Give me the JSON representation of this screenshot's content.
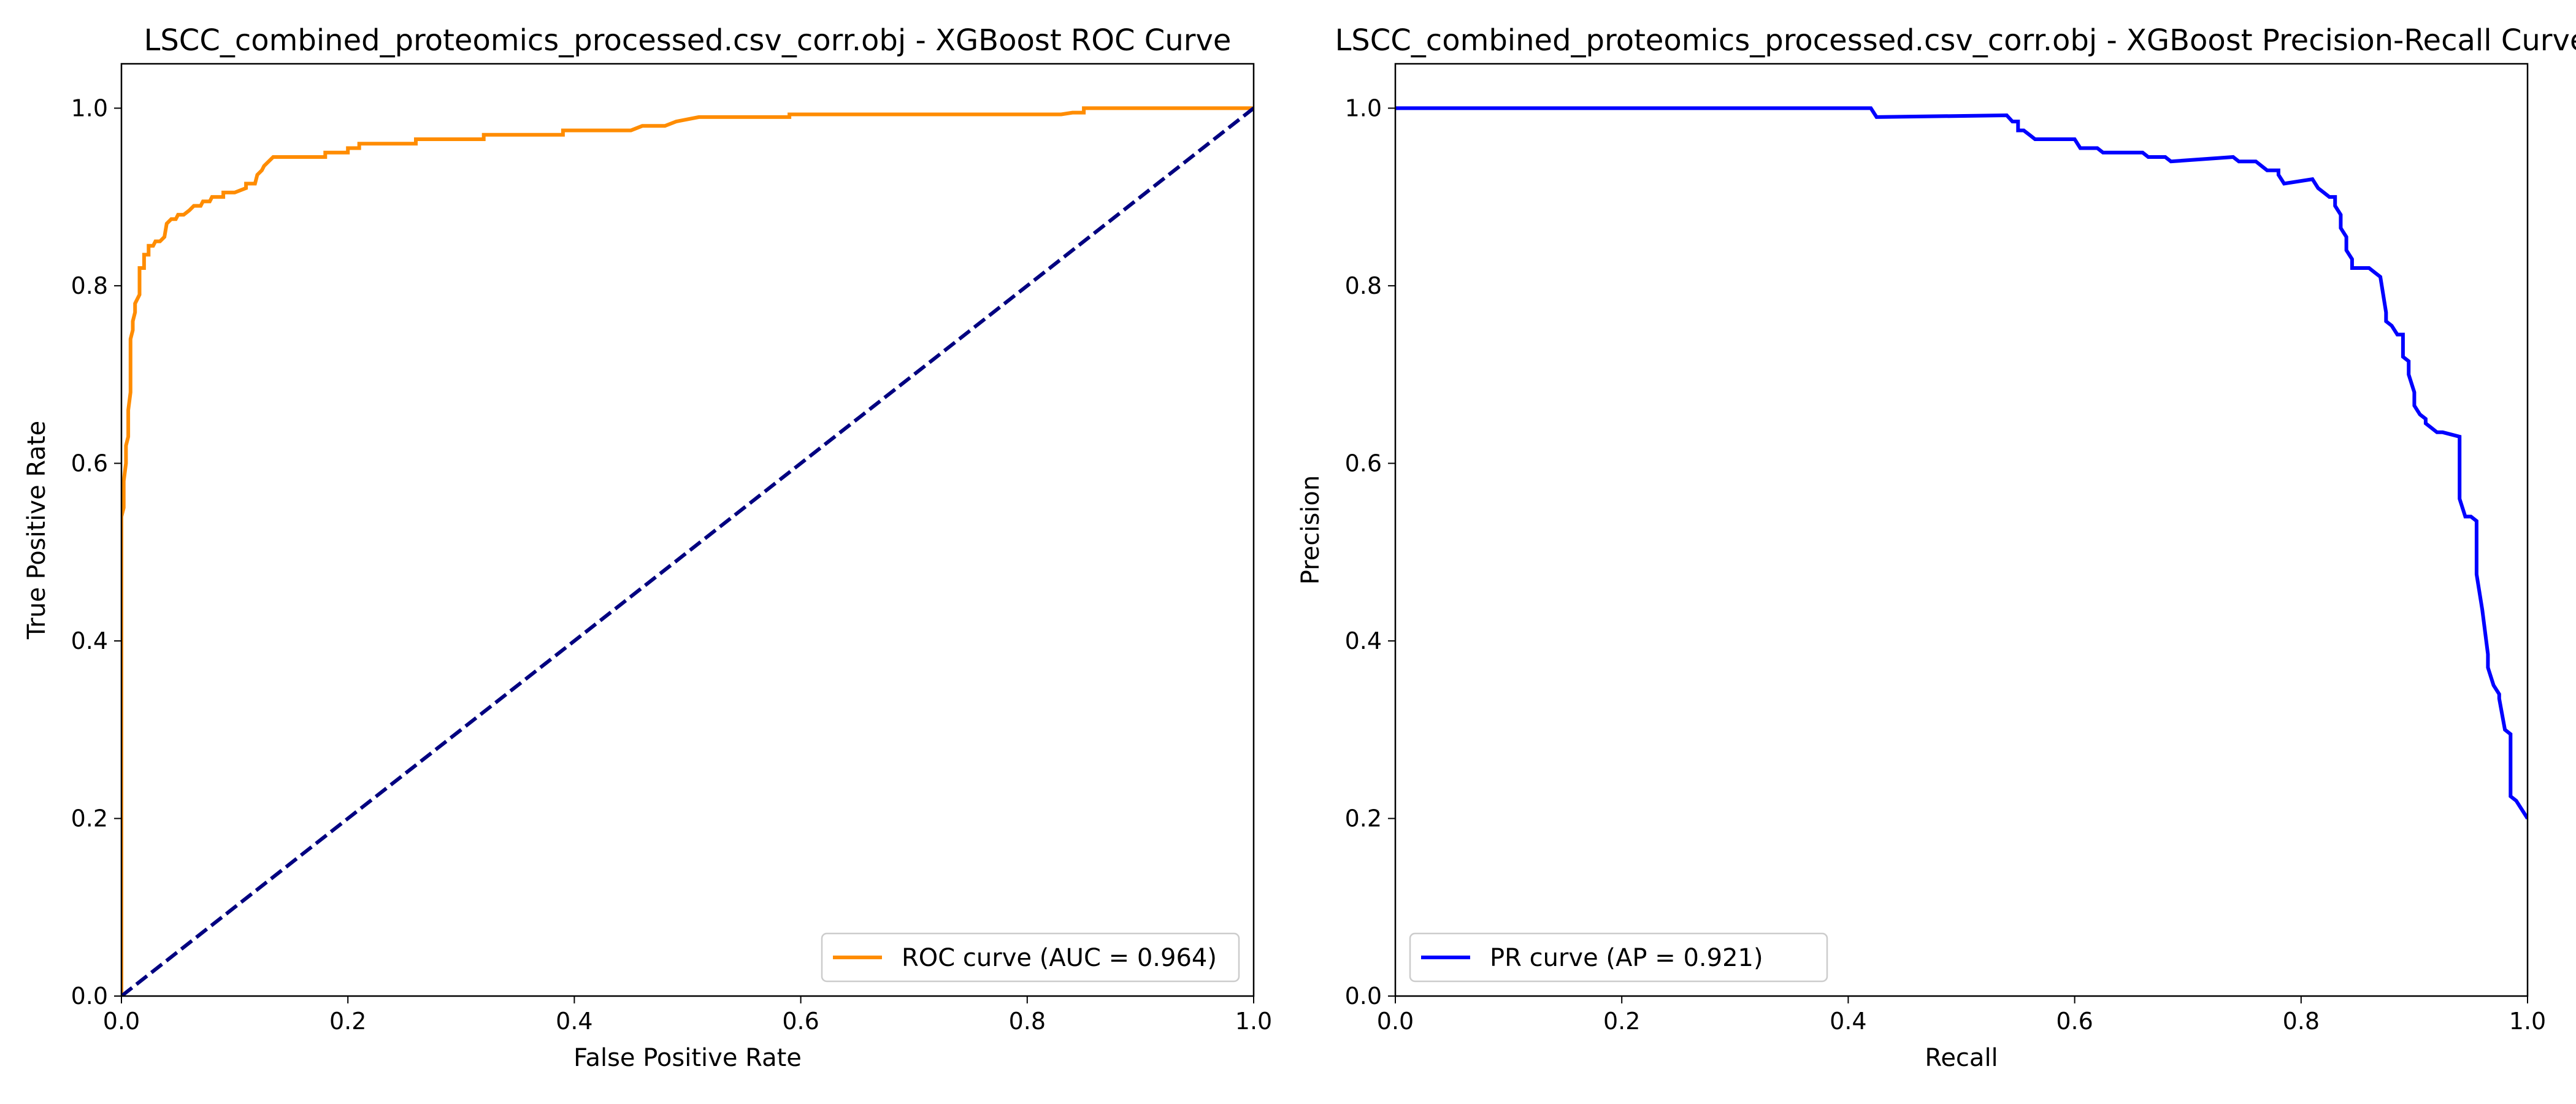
{
  "chart_data": [
    {
      "type": "line",
      "title": "LSCC_combined_proteomics_processed.csv_corr.obj - XGBoost ROC Curve",
      "xlabel": "False Positive Rate",
      "ylabel": "True Positive Rate",
      "xlim": [
        0.0,
        1.0
      ],
      "ylim": [
        0.0,
        1.05
      ],
      "xticks": [
        "0.0",
        "0.2",
        "0.4",
        "0.6",
        "0.8",
        "1.0"
      ],
      "yticks": [
        "0.0",
        "0.2",
        "0.4",
        "0.6",
        "0.8",
        "1.0"
      ],
      "grid": false,
      "legend_position": "lower right",
      "series": [
        {
          "name": "ROC curve (AUC = 0.964)",
          "color": "#ff8c00",
          "dash": "solid",
          "x": [
            0.0,
            0.0,
            0.002,
            0.002,
            0.004,
            0.004,
            0.006,
            0.006,
            0.008,
            0.008,
            0.01,
            0.01,
            0.012,
            0.012,
            0.016,
            0.016,
            0.02,
            0.02,
            0.024,
            0.024,
            0.028,
            0.03,
            0.034,
            0.038,
            0.04,
            0.044,
            0.048,
            0.05,
            0.055,
            0.06,
            0.064,
            0.07,
            0.072,
            0.078,
            0.08,
            0.09,
            0.09,
            0.1,
            0.11,
            0.11,
            0.118,
            0.12,
            0.124,
            0.126,
            0.13,
            0.134,
            0.136,
            0.16,
            0.18,
            0.18,
            0.2,
            0.2,
            0.21,
            0.21,
            0.26,
            0.26,
            0.32,
            0.32,
            0.39,
            0.39,
            0.45,
            0.46,
            0.48,
            0.49,
            0.51,
            0.59,
            0.59,
            0.74,
            0.83,
            0.84,
            0.85,
            0.85,
            1.0
          ],
          "y": [
            0.0,
            0.54,
            0.55,
            0.58,
            0.6,
            0.62,
            0.63,
            0.66,
            0.68,
            0.74,
            0.75,
            0.76,
            0.77,
            0.78,
            0.79,
            0.82,
            0.82,
            0.835,
            0.835,
            0.845,
            0.845,
            0.85,
            0.85,
            0.855,
            0.87,
            0.875,
            0.875,
            0.88,
            0.88,
            0.885,
            0.89,
            0.89,
            0.895,
            0.895,
            0.9,
            0.9,
            0.905,
            0.905,
            0.91,
            0.915,
            0.915,
            0.925,
            0.93,
            0.935,
            0.94,
            0.945,
            0.945,
            0.945,
            0.945,
            0.95,
            0.95,
            0.955,
            0.955,
            0.96,
            0.96,
            0.965,
            0.965,
            0.97,
            0.97,
            0.975,
            0.975,
            0.98,
            0.98,
            0.985,
            0.99,
            0.99,
            0.993,
            0.993,
            0.993,
            0.995,
            0.995,
            1.0,
            1.0
          ]
        },
        {
          "name": "",
          "color": "#000080",
          "dash": "dashed",
          "x": [
            0.0,
            1.0
          ],
          "y": [
            0.0,
            1.0
          ]
        }
      ],
      "legend": [
        {
          "label": "ROC curve (AUC = 0.964)",
          "color": "#ff8c00"
        }
      ]
    },
    {
      "type": "line",
      "title": "LSCC_combined_proteomics_processed.csv_corr.obj - XGBoost Precision-Recall Curve",
      "xlabel": "Recall",
      "ylabel": "Precision",
      "xlim": [
        0.0,
        1.0
      ],
      "ylim": [
        0.0,
        1.05
      ],
      "xticks": [
        "0.0",
        "0.2",
        "0.4",
        "0.6",
        "0.8",
        "1.0"
      ],
      "yticks": [
        "0.0",
        "0.2",
        "0.4",
        "0.6",
        "0.8",
        "1.0"
      ],
      "grid": false,
      "legend_position": "lower left",
      "series": [
        {
          "name": "PR curve (AP = 0.921)",
          "color": "#0000ff",
          "dash": "solid",
          "x": [
            0.0,
            0.42,
            0.425,
            0.54,
            0.545,
            0.55,
            0.55,
            0.555,
            0.56,
            0.565,
            0.6,
            0.605,
            0.62,
            0.625,
            0.66,
            0.665,
            0.68,
            0.685,
            0.74,
            0.745,
            0.76,
            0.765,
            0.77,
            0.78,
            0.78,
            0.785,
            0.81,
            0.815,
            0.82,
            0.825,
            0.83,
            0.83,
            0.835,
            0.835,
            0.84,
            0.84,
            0.845,
            0.845,
            0.86,
            0.865,
            0.87,
            0.875,
            0.875,
            0.88,
            0.885,
            0.89,
            0.89,
            0.895,
            0.895,
            0.9,
            0.9,
            0.905,
            0.91,
            0.91,
            0.915,
            0.92,
            0.925,
            0.94,
            0.94,
            0.945,
            0.95,
            0.955,
            0.955,
            0.96,
            0.965,
            0.965,
            0.97,
            0.975,
            0.975,
            0.98,
            0.985,
            0.985,
            0.99,
            1.0,
            1.0
          ],
          "y": [
            1.0,
            1.0,
            0.99,
            0.992,
            0.985,
            0.985,
            0.975,
            0.975,
            0.97,
            0.965,
            0.965,
            0.955,
            0.955,
            0.95,
            0.95,
            0.945,
            0.945,
            0.94,
            0.945,
            0.94,
            0.94,
            0.935,
            0.93,
            0.93,
            0.925,
            0.915,
            0.92,
            0.91,
            0.905,
            0.9,
            0.9,
            0.89,
            0.88,
            0.865,
            0.855,
            0.84,
            0.83,
            0.82,
            0.82,
            0.815,
            0.81,
            0.77,
            0.76,
            0.755,
            0.745,
            0.745,
            0.72,
            0.715,
            0.7,
            0.68,
            0.665,
            0.655,
            0.65,
            0.645,
            0.64,
            0.635,
            0.635,
            0.63,
            0.56,
            0.54,
            0.54,
            0.535,
            0.475,
            0.435,
            0.385,
            0.37,
            0.35,
            0.34,
            0.335,
            0.3,
            0.295,
            0.225,
            0.22,
            0.2,
            0.2
          ]
        }
      ],
      "legend": [
        {
          "label": "PR curve (AP = 0.921)",
          "color": "#0000ff"
        }
      ]
    }
  ]
}
